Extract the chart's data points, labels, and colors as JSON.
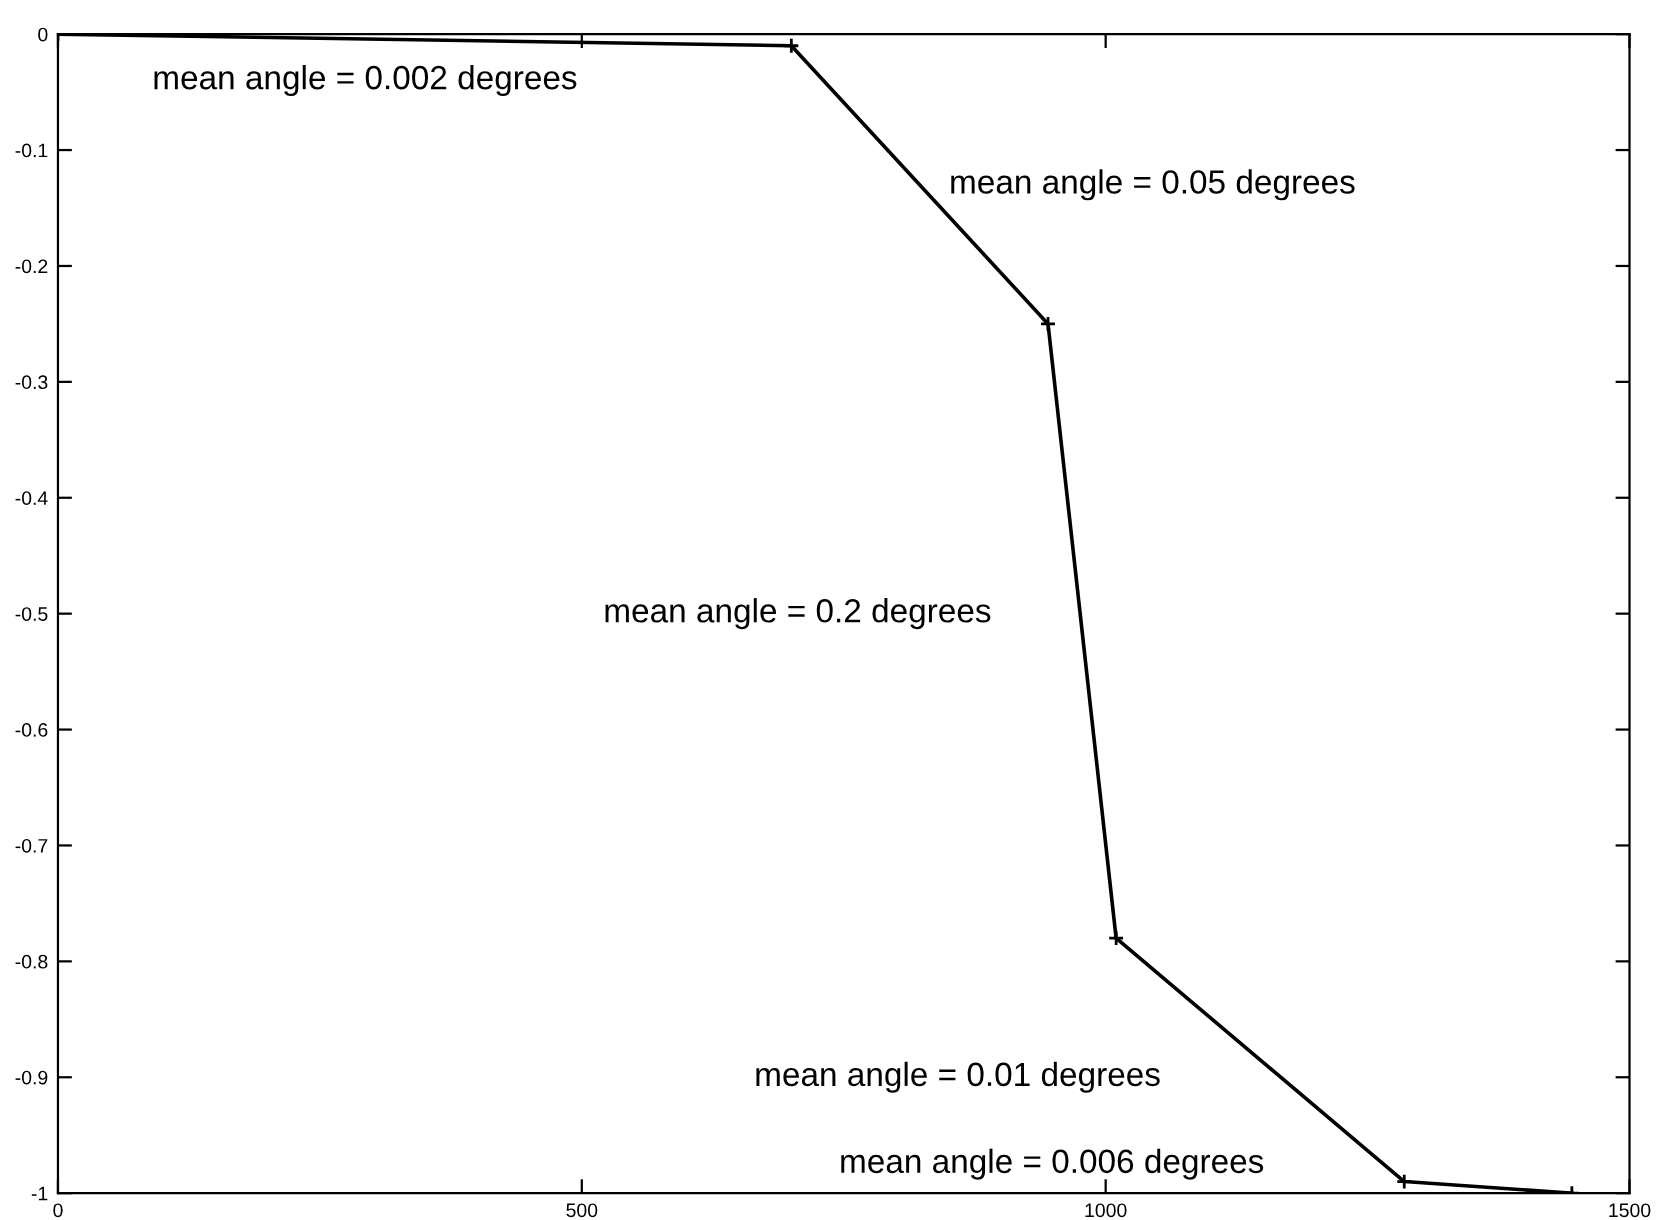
{
  "chart_data": {
    "type": "line",
    "x": [
      0,
      700,
      945,
      1010,
      1285,
      1445
    ],
    "series": [
      {
        "color": "#000000",
        "values": [
          0,
          -0.01,
          -0.25,
          -0.78,
          -0.99,
          -1.0
        ]
      }
    ],
    "marker": "cross",
    "line_style": "solid",
    "xlim": [
      0,
      1500
    ],
    "xticks": [
      0,
      500,
      1000,
      1500
    ],
    "ylim": [
      -1,
      0
    ],
    "yticks": [
      -1,
      -0.9,
      -0.8,
      -0.7,
      -0.6,
      -0.5,
      -0.4,
      -0.3,
      -0.2,
      -0.1,
      0
    ],
    "grid": false,
    "legend": false,
    "annotations": [
      "mean angle = 0.002 degrees",
      "mean angle = 0.05 degrees",
      "mean angle = 0.2 degrees",
      "mean angle = 0.01 degrees",
      "mean angle = 0.006 degrees"
    ]
  }
}
